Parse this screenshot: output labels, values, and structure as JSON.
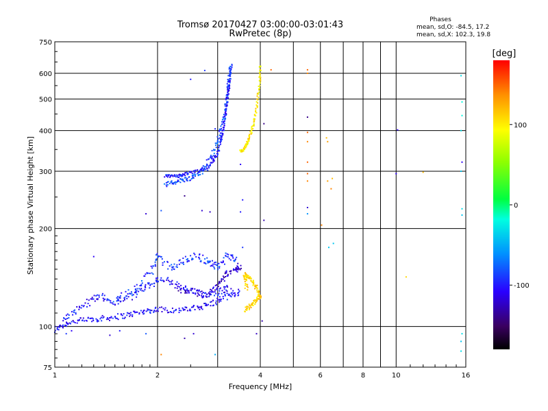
{
  "chart_data": {
    "type": "scatter",
    "title": "Tromsø 20170427 03:00:00-03:01:43",
    "subtitle": "RwPretec (8p)",
    "xlabel": "Frequency [MHz]",
    "ylabel": "Stationary phase Virtual Height [km]",
    "x_scale": "log",
    "y_scale": "log",
    "xlim": [
      1,
      16
    ],
    "ylim": [
      75,
      750
    ],
    "x_ticks": [
      1,
      2,
      4,
      6,
      8,
      10,
      16
    ],
    "x_tick_labels": [
      "1",
      "2",
      "4",
      "6",
      "8",
      "10",
      "16"
    ],
    "y_ticks": [
      75,
      100,
      200,
      300,
      400,
      500,
      600,
      750
    ],
    "y_tick_labels": [
      "75",
      "100",
      "200",
      "300",
      "400",
      "500",
      "600",
      "750"
    ],
    "grid": true,
    "colorbar": {
      "title": "[deg]",
      "range": [
        -180,
        180
      ],
      "ticks": [
        100,
        0,
        -100
      ],
      "tick_labels": [
        "100",
        "0",
        "-100"
      ]
    },
    "info": {
      "heading": "Phases",
      "line1": "mean, sd,O: -84.5, 17.2",
      "line2": "mean, sd,X: 102.3, 19.8"
    },
    "traces": [
      {
        "name": "",
        "phase": -105,
        "spread": 0.04,
        "density": 5,
        "points": [
          [
            1.0,
            98
          ],
          [
            1.1,
            103
          ],
          [
            1.25,
            105
          ],
          [
            1.4,
            106
          ],
          [
            1.6,
            108
          ],
          [
            1.8,
            111
          ],
          [
            2.0,
            113
          ],
          [
            2.3,
            112
          ],
          [
            2.6,
            114
          ],
          [
            2.9,
            118
          ],
          [
            3.2,
            124
          ],
          [
            3.5,
            128
          ]
        ]
      },
      {
        "name": "",
        "phase": -100,
        "spread": 0.05,
        "density": 5,
        "points": [
          [
            1.05,
            105
          ],
          [
            1.2,
            115
          ],
          [
            1.35,
            125
          ],
          [
            1.5,
            118
          ],
          [
            1.7,
            125
          ],
          [
            1.9,
            135
          ],
          [
            2.1,
            140
          ],
          [
            2.4,
            130
          ],
          [
            2.7,
            125
          ],
          [
            3.0,
            128
          ],
          [
            3.3,
            132
          ]
        ]
      },
      {
        "name": "",
        "phase": -90,
        "spread": 0.05,
        "density": 4,
        "points": [
          [
            1.5,
            122
          ],
          [
            1.7,
            128
          ],
          [
            1.9,
            145
          ],
          [
            2.0,
            165
          ],
          [
            2.2,
            150
          ],
          [
            2.4,
            160
          ],
          [
            2.6,
            165
          ],
          [
            2.8,
            158
          ],
          [
            3.0,
            152
          ],
          [
            3.2,
            165
          ],
          [
            3.4,
            162
          ]
        ]
      },
      {
        "name": "",
        "phase": -120,
        "spread": 0.05,
        "density": 4,
        "points": [
          [
            2.3,
            130
          ],
          [
            2.5,
            128
          ],
          [
            2.8,
            125
          ],
          [
            3.0,
            135
          ],
          [
            3.2,
            145
          ],
          [
            3.4,
            150
          ],
          [
            3.5,
            155
          ]
        ]
      },
      {
        "name": "",
        "phase": -85,
        "spread": 0.03,
        "density": 5,
        "points": [
          [
            2.1,
            272
          ],
          [
            2.3,
            280
          ],
          [
            2.5,
            285
          ],
          [
            2.7,
            300
          ],
          [
            2.9,
            340
          ],
          [
            3.05,
            390
          ],
          [
            3.15,
            450
          ],
          [
            3.2,
            520
          ],
          [
            3.25,
            590
          ],
          [
            3.28,
            635
          ]
        ]
      },
      {
        "name": "",
        "phase": -100,
        "spread": 0.02,
        "density": 6,
        "points": [
          [
            2.1,
            290
          ],
          [
            2.3,
            290
          ],
          [
            2.5,
            297
          ],
          [
            2.8,
            305
          ],
          [
            3.0,
            340
          ],
          [
            3.1,
            390
          ],
          [
            3.17,
            460
          ],
          [
            3.23,
            540
          ],
          [
            3.28,
            610
          ]
        ]
      },
      {
        "name": "",
        "phase": 100,
        "spread": 0.02,
        "density": 5,
        "points": [
          [
            3.5,
            345
          ],
          [
            3.6,
            352
          ],
          [
            3.7,
            375
          ],
          [
            3.8,
            410
          ],
          [
            3.9,
            470
          ],
          [
            3.98,
            560
          ],
          [
            4.0,
            640
          ]
        ]
      },
      {
        "name": "",
        "phase": 110,
        "spread": 0.03,
        "density": 5,
        "points": [
          [
            3.6,
            112
          ],
          [
            3.75,
            116
          ],
          [
            3.9,
            120
          ],
          [
            4.0,
            125
          ],
          [
            3.85,
            135
          ],
          [
            3.7,
            142
          ],
          [
            3.6,
            145
          ],
          [
            3.65,
            130
          ]
        ]
      }
    ],
    "scatter": [
      [
        1.0,
        96,
        -95
      ],
      [
        1.08,
        95,
        -90
      ],
      [
        1.12,
        97,
        -110
      ],
      [
        1.45,
        94,
        -120
      ],
      [
        1.55,
        97,
        -100
      ],
      [
        1.85,
        95,
        -80
      ],
      [
        2.05,
        82,
        140
      ],
      [
        2.4,
        92,
        -130
      ],
      [
        2.55,
        95,
        -120
      ],
      [
        2.95,
        82,
        -50
      ],
      [
        3.9,
        95,
        -125
      ],
      [
        4.05,
        104,
        -130
      ],
      [
        1.3,
        164,
        -110
      ],
      [
        1.85,
        222,
        -120
      ],
      [
        2.05,
        227,
        -80
      ],
      [
        2.4,
        252,
        -140
      ],
      [
        2.7,
        227,
        -120
      ],
      [
        2.85,
        225,
        -125
      ],
      [
        2.5,
        575,
        -100
      ],
      [
        2.75,
        612,
        -90
      ],
      [
        2.95,
        405,
        -95
      ],
      [
        3.5,
        225,
        -100
      ],
      [
        3.55,
        245,
        -100
      ],
      [
        3.55,
        175,
        -90
      ],
      [
        3.5,
        315,
        -110
      ],
      [
        4.1,
        212,
        -130
      ],
      [
        4.1,
        420,
        -140
      ],
      [
        4.3,
        615,
        150
      ],
      [
        5.5,
        615,
        150
      ],
      [
        5.5,
        600,
        140
      ],
      [
        5.5,
        440,
        -140
      ],
      [
        5.5,
        395,
        150
      ],
      [
        5.5,
        370,
        140
      ],
      [
        5.5,
        320,
        150
      ],
      [
        5.5,
        295,
        150
      ],
      [
        5.5,
        280,
        140
      ],
      [
        5.5,
        232,
        -120
      ],
      [
        5.5,
        222,
        -60
      ],
      [
        6.25,
        380,
        120
      ],
      [
        6.3,
        370,
        130
      ],
      [
        6.3,
        280,
        130
      ],
      [
        6.5,
        285,
        120
      ],
      [
        6.45,
        265,
        140
      ],
      [
        6.05,
        205,
        140
      ],
      [
        6.35,
        175,
        -40
      ],
      [
        6.55,
        180,
        -40
      ],
      [
        10.1,
        402,
        -110
      ],
      [
        10.0,
        295,
        -110
      ],
      [
        10.7,
        142,
        110
      ],
      [
        12.0,
        298,
        120
      ],
      [
        15.5,
        590,
        -30
      ],
      [
        15.6,
        490,
        -20
      ],
      [
        15.6,
        445,
        -20
      ],
      [
        15.5,
        400,
        -30
      ],
      [
        15.6,
        320,
        -110
      ],
      [
        15.5,
        300,
        -40
      ],
      [
        15.6,
        230,
        -30
      ],
      [
        15.6,
        220,
        -40
      ],
      [
        15.6,
        95,
        -30
      ],
      [
        15.5,
        90,
        -40
      ],
      [
        15.5,
        84,
        -30
      ]
    ]
  }
}
